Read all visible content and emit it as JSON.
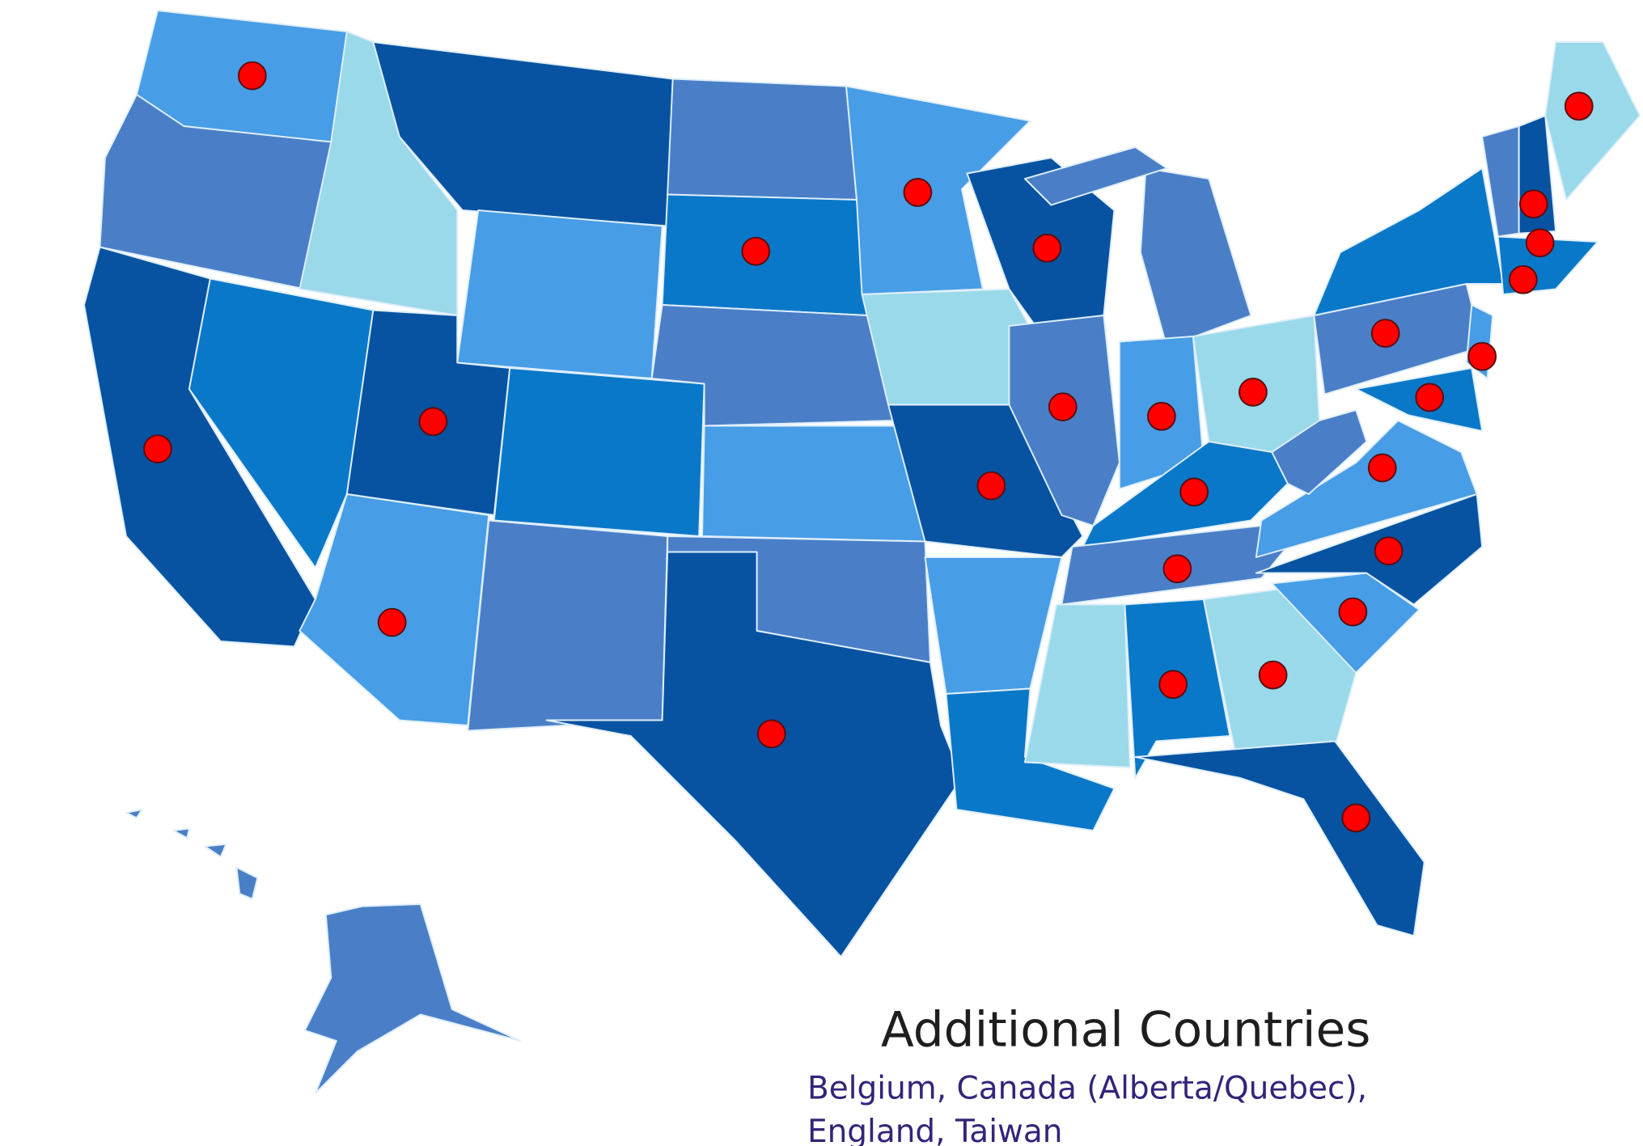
{
  "annotation": {
    "title": "Additional Countries",
    "lines": [
      "Belgium, Canada (Alberta/Quebec),",
      "England, Taiwan"
    ]
  }
}
